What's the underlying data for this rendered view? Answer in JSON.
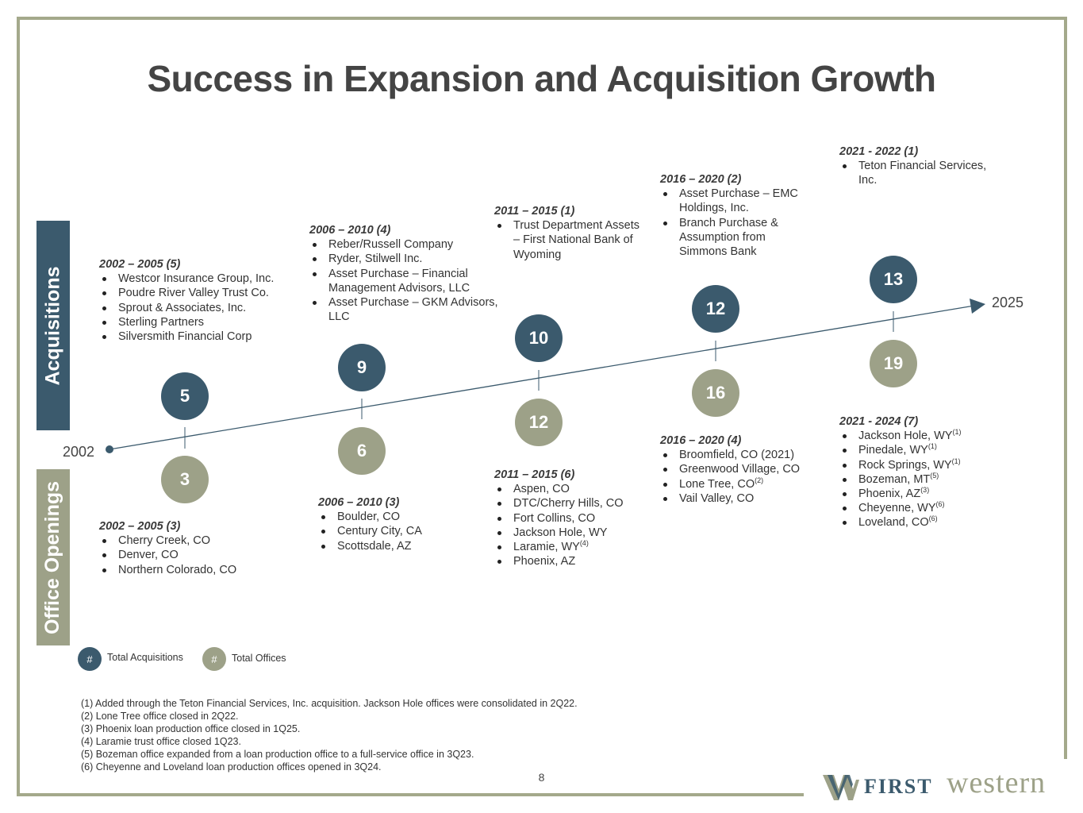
{
  "title": "Success in Expansion and Acquisition Growth",
  "bands": {
    "acquisitions": "Acquisitions",
    "office_openings": "Office Openings"
  },
  "timeline": {
    "start_year": "2002",
    "end_year": "2025"
  },
  "colors": {
    "acquisitions": "#3b5a6d",
    "offices": "#9da188",
    "frame": "#a4a98b"
  },
  "periods": [
    {
      "acq_total": "5",
      "off_total": "3",
      "acq_head": "2002 – 2005 (5)",
      "acq_items": [
        "Westcor Insurance Group, Inc.",
        "Poudre River Valley Trust Co.",
        "Sprout & Associates, Inc.",
        "Sterling Partners",
        "Silversmith Financial Corp"
      ],
      "off_head": "2002 – 2005 (3)",
      "off_items": [
        {
          "text": "Cherry Creek, CO"
        },
        {
          "text": "Denver, CO"
        },
        {
          "text": "Northern Colorado, CO"
        }
      ]
    },
    {
      "acq_total": "9",
      "off_total": "6",
      "acq_head": "2006 – 2010 (4)",
      "acq_items": [
        "Reber/Russell Company",
        "Ryder, Stilwell Inc.",
        "Asset Purchase – Financial Management Advisors, LLC",
        "Asset Purchase – GKM Advisors, LLC"
      ],
      "off_head": "2006 – 2010 (3)",
      "off_items": [
        {
          "text": "Boulder, CO"
        },
        {
          "text": "Century City, CA"
        },
        {
          "text": "Scottsdale, AZ"
        }
      ]
    },
    {
      "acq_total": "10",
      "off_total": "12",
      "acq_head": "2011 – 2015 (1)",
      "acq_items": [
        "Trust Department Assets – First National Bank of Wyoming"
      ],
      "off_head": "2011 – 2015 (6)",
      "off_items": [
        {
          "text": "Aspen, CO"
        },
        {
          "text": "DTC/Cherry Hills, CO"
        },
        {
          "text": "Fort Collins, CO"
        },
        {
          "text": "Jackson Hole, WY"
        },
        {
          "text": "Laramie, WY",
          "note": "(4)"
        },
        {
          "text": "Phoenix, AZ"
        }
      ]
    },
    {
      "acq_total": "12",
      "off_total": "16",
      "acq_head": "2016 – 2020 (2)",
      "acq_items": [
        "Asset Purchase – EMC Holdings, Inc.",
        "Branch Purchase & Assumption from Simmons Bank"
      ],
      "off_head": "2016 – 2020 (4)",
      "off_items": [
        {
          "text": "Broomfield, CO (2021)"
        },
        {
          "text": "Greenwood Village, CO"
        },
        {
          "text": "Lone Tree, CO",
          "note": "(2)"
        },
        {
          "text": "Vail Valley, CO"
        }
      ]
    },
    {
      "acq_total": "13",
      "off_total": "19",
      "acq_head": "2021 - 2022 (1)",
      "acq_items": [
        "Teton Financial Services, Inc."
      ],
      "off_head": "2021 - 2024 (7)",
      "off_items": [
        {
          "text": "Jackson Hole, WY",
          "note": "(1)"
        },
        {
          "text": "Pinedale, WY",
          "note": "(1)"
        },
        {
          "text": "Rock Springs, WY",
          "note": "(1)"
        },
        {
          "text": "Bozeman, MT",
          "note": "(5)"
        },
        {
          "text": "Phoenix, AZ",
          "note": "(3)"
        },
        {
          "text": "Cheyenne, WY",
          "note": "(6)"
        },
        {
          "text": "Loveland, CO",
          "note": "(6)"
        }
      ]
    }
  ],
  "legend": {
    "symbol": "#",
    "acquisitions_label": "Total Acquisitions",
    "offices_label": "Total Offices"
  },
  "footnotes": [
    "(1) Added through the Teton Financial Services, Inc. acquisition. Jackson Hole offices were consolidated in 2Q22.",
    "(2) Lone Tree office closed in 2Q22.",
    "(3) Phoenix loan production office closed in 1Q25.",
    "(4) Laramie trust office closed 1Q23.",
    "(5) Bozeman office expanded from a loan production office to a full-service office in 3Q23.",
    "(6) Cheyenne and Loveland loan production offices opened in 3Q24."
  ],
  "page_number": "8",
  "logo": {
    "first": "FIRST",
    "western": "western"
  }
}
